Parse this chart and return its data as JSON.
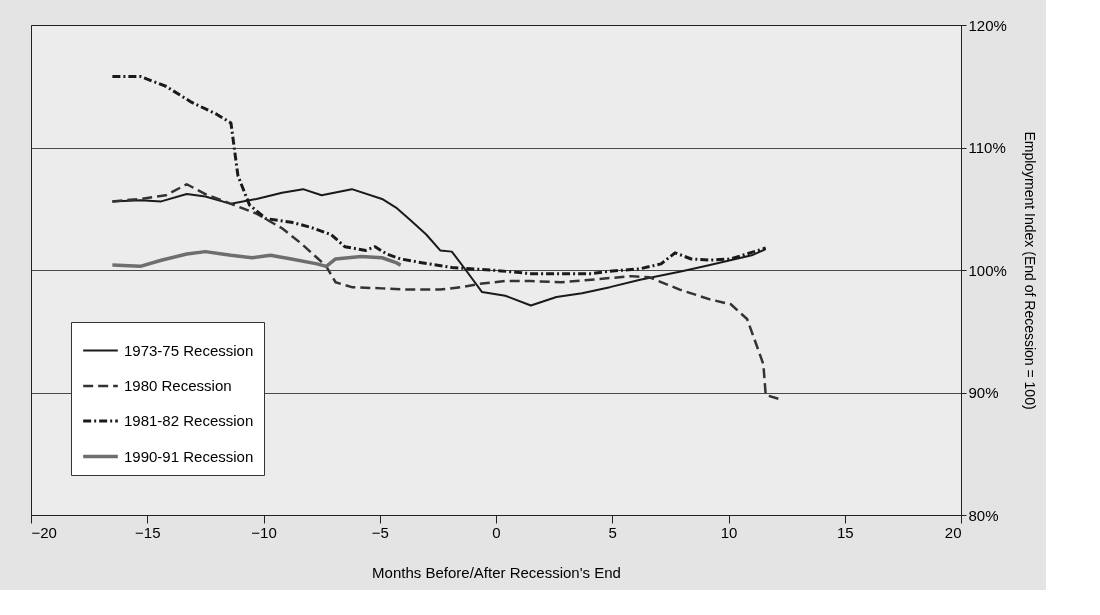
{
  "chart_data": {
    "type": "line",
    "xlabel": "Months Before/After Recession's End",
    "ylabel": "Employment Index (End of Recession = 100)",
    "xlim": [
      -20,
      20
    ],
    "xticks": [
      -20,
      -15,
      -10,
      -5,
      0,
      5,
      10,
      15,
      20
    ],
    "ylim": [
      80,
      120
    ],
    "yticks": [
      {
        "value": 80,
        "label": "80%"
      },
      {
        "value": 90,
        "label": "90%"
      },
      {
        "value": 100,
        "label": "100%"
      },
      {
        "value": 110,
        "label": "110%"
      },
      {
        "value": 120,
        "label": "120%"
      }
    ],
    "grid": "y",
    "legend": "bottom left",
    "marker": "none",
    "series": [
      {
        "name": "1973-75 Recession",
        "color": "#1a1a1a",
        "line_style": "solid",
        "x": [
          -16.5,
          -15.3,
          -14.4,
          -13.3,
          -12.5,
          -11.4,
          -10.3,
          -9.2,
          -8.3,
          -7.5,
          -6.2,
          -4.9,
          -4.3,
          -3.7,
          -3.0,
          -2.4,
          -1.9,
          -1.3,
          -0.6,
          0.4,
          1.5,
          2.6,
          3.7,
          4.9,
          6.2,
          8.0,
          9.2,
          11.0,
          11.6
        ],
        "values": [
          105.6,
          105.7,
          105.6,
          106.2,
          106.0,
          105.4,
          105.8,
          106.3,
          106.6,
          106.1,
          106.6,
          105.8,
          105.1,
          104.1,
          102.9,
          101.6,
          101.5,
          100.0,
          98.2,
          97.9,
          97.1,
          97.8,
          98.1,
          98.6,
          99.2,
          99.9,
          100.4,
          101.2,
          101.7
        ]
      },
      {
        "name": "1980 Recession",
        "color": "#333333",
        "line_style": "dashed",
        "x": [
          -16.5,
          -15.3,
          -14.2,
          -13.3,
          -12.5,
          -11.4,
          -10.3,
          -9.2,
          -8.4,
          -7.7,
          -7.3,
          -6.9,
          -6.2,
          -4.9,
          -3.7,
          -2.4,
          -1.5,
          -0.6,
          0.4,
          1.5,
          2.8,
          4.1,
          5.8,
          6.6,
          7.9,
          9.2,
          10.1,
          10.8,
          11.2,
          11.5,
          11.6,
          12.3
        ],
        "values": [
          105.6,
          105.8,
          106.1,
          107.0,
          106.2,
          105.4,
          104.6,
          103.4,
          102.2,
          101.0,
          100.3,
          99.0,
          98.6,
          98.5,
          98.4,
          98.4,
          98.6,
          98.9,
          99.1,
          99.1,
          99.0,
          99.2,
          99.5,
          99.4,
          98.4,
          97.6,
          97.2,
          96.0,
          93.9,
          92.3,
          89.8,
          89.4
        ]
      },
      {
        "name": "1981-82 Recession",
        "color": "#1a1a1a",
        "line_style": "dashdot",
        "x": [
          -16.5,
          -15.3,
          -14.2,
          -13.1,
          -12.0,
          -11.4,
          -11.1,
          -10.6,
          -9.9,
          -8.8,
          -8.0,
          -7.1,
          -6.5,
          -5.6,
          -5.2,
          -4.7,
          -4.1,
          -3.2,
          -1.9,
          -0.2,
          1.5,
          2.8,
          4.1,
          4.9,
          6.2,
          7.1,
          7.7,
          8.4,
          9.2,
          10.1,
          11.6
        ],
        "values": [
          115.8,
          115.8,
          115.0,
          113.7,
          112.7,
          112.0,
          107.7,
          105.3,
          104.2,
          103.9,
          103.5,
          102.9,
          101.9,
          101.6,
          101.9,
          101.3,
          100.9,
          100.6,
          100.2,
          100.0,
          99.7,
          99.7,
          99.7,
          99.9,
          100.1,
          100.5,
          101.4,
          100.9,
          100.8,
          100.9,
          101.8
        ]
      },
      {
        "name": "1990-91 Recession",
        "color": "#6e6e6e",
        "line_style": "solid",
        "x": [
          -16.5,
          -15.3,
          -14.4,
          -13.3,
          -12.5,
          -11.4,
          -10.5,
          -9.7,
          -8.8,
          -7.7,
          -7.3,
          -6.9,
          -5.8,
          -4.9,
          -4.3,
          -4.1
        ],
        "values": [
          100.4,
          100.3,
          100.8,
          101.3,
          101.5,
          101.2,
          101.0,
          101.2,
          100.9,
          100.5,
          100.3,
          100.9,
          101.1,
          101.0,
          100.6,
          100.4
        ]
      }
    ]
  }
}
